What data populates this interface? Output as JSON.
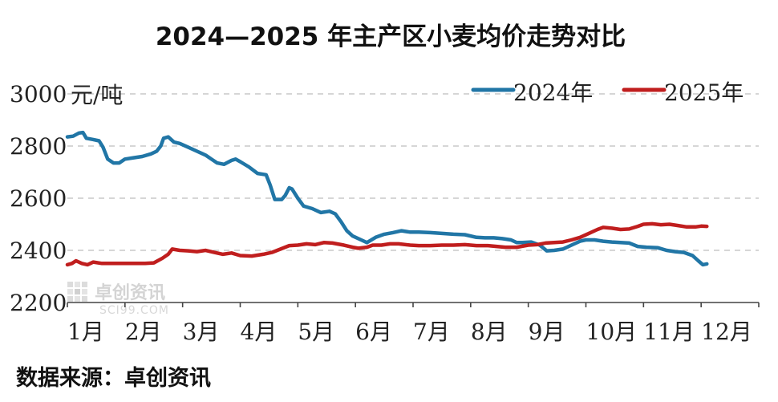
{
  "chart_data": {
    "type": "line",
    "title": "2024—2025 年主产区小麦均价走势对比",
    "ylabel_unit": "元/吨",
    "ylim": [
      2200,
      3000
    ],
    "yticks": [
      2200,
      2400,
      2600,
      2800,
      3000
    ],
    "categories": [
      "1月",
      "2月",
      "3月",
      "4月",
      "5月",
      "6月",
      "7月",
      "8月",
      "9月",
      "10月",
      "11月",
      "12月"
    ],
    "grid": true,
    "legend_position": "top-right",
    "series": [
      {
        "name": "2024年",
        "color": "#2176a6",
        "points": [
          [
            0.0,
            2835
          ],
          [
            0.1,
            2838
          ],
          [
            0.2,
            2850
          ],
          [
            0.27,
            2852
          ],
          [
            0.33,
            2830
          ],
          [
            0.45,
            2825
          ],
          [
            0.55,
            2820
          ],
          [
            0.62,
            2795
          ],
          [
            0.7,
            2750
          ],
          [
            0.8,
            2735
          ],
          [
            0.9,
            2735
          ],
          [
            1.0,
            2750
          ],
          [
            1.15,
            2755
          ],
          [
            1.3,
            2760
          ],
          [
            1.45,
            2770
          ],
          [
            1.55,
            2780
          ],
          [
            1.62,
            2800
          ],
          [
            1.67,
            2830
          ],
          [
            1.75,
            2835
          ],
          [
            1.85,
            2815
          ],
          [
            1.95,
            2810
          ],
          [
            2.1,
            2795
          ],
          [
            2.25,
            2780
          ],
          [
            2.4,
            2765
          ],
          [
            2.5,
            2750
          ],
          [
            2.6,
            2735
          ],
          [
            2.72,
            2730
          ],
          [
            2.85,
            2745
          ],
          [
            2.92,
            2750
          ],
          [
            3.0,
            2740
          ],
          [
            3.15,
            2720
          ],
          [
            3.3,
            2695
          ],
          [
            3.45,
            2690
          ],
          [
            3.52,
            2650
          ],
          [
            3.6,
            2595
          ],
          [
            3.72,
            2595
          ],
          [
            3.78,
            2610
          ],
          [
            3.85,
            2640
          ],
          [
            3.9,
            2635
          ],
          [
            4.0,
            2600
          ],
          [
            4.1,
            2570
          ],
          [
            4.25,
            2560
          ],
          [
            4.4,
            2545
          ],
          [
            4.55,
            2550
          ],
          [
            4.65,
            2540
          ],
          [
            4.75,
            2510
          ],
          [
            4.85,
            2475
          ],
          [
            4.95,
            2455
          ],
          [
            5.1,
            2440
          ],
          [
            5.2,
            2430
          ],
          [
            5.35,
            2450
          ],
          [
            5.5,
            2462
          ],
          [
            5.65,
            2468
          ],
          [
            5.8,
            2475
          ],
          [
            5.95,
            2470
          ],
          [
            6.1,
            2470
          ],
          [
            6.3,
            2468
          ],
          [
            6.5,
            2465
          ],
          [
            6.7,
            2462
          ],
          [
            6.9,
            2460
          ],
          [
            7.1,
            2450
          ],
          [
            7.25,
            2448
          ],
          [
            7.4,
            2448
          ],
          [
            7.55,
            2445
          ],
          [
            7.7,
            2440
          ],
          [
            7.8,
            2430
          ],
          [
            7.9,
            2430
          ],
          [
            8.05,
            2432
          ],
          [
            8.2,
            2420
          ],
          [
            8.32,
            2398
          ],
          [
            8.45,
            2400
          ],
          [
            8.6,
            2405
          ],
          [
            8.75,
            2420
          ],
          [
            8.9,
            2435
          ],
          [
            9.0,
            2440
          ],
          [
            9.15,
            2440
          ],
          [
            9.3,
            2435
          ],
          [
            9.45,
            2432
          ],
          [
            9.6,
            2430
          ],
          [
            9.75,
            2428
          ],
          [
            9.9,
            2415
          ],
          [
            10.05,
            2412
          ],
          [
            10.25,
            2410
          ],
          [
            10.4,
            2400
          ],
          [
            10.55,
            2395
          ],
          [
            10.7,
            2392
          ],
          [
            10.85,
            2380
          ],
          [
            10.95,
            2360
          ],
          [
            11.03,
            2345
          ],
          [
            11.1,
            2348
          ]
        ]
      },
      {
        "name": "2025年",
        "color": "#c01e1e",
        "points": [
          [
            0.0,
            2345
          ],
          [
            0.08,
            2350
          ],
          [
            0.15,
            2360
          ],
          [
            0.25,
            2350
          ],
          [
            0.35,
            2345
          ],
          [
            0.45,
            2355
          ],
          [
            0.6,
            2350
          ],
          [
            0.8,
            2350
          ],
          [
            1.0,
            2350
          ],
          [
            1.2,
            2350
          ],
          [
            1.35,
            2350
          ],
          [
            1.5,
            2352
          ],
          [
            1.65,
            2370
          ],
          [
            1.75,
            2385
          ],
          [
            1.82,
            2405
          ],
          [
            1.95,
            2400
          ],
          [
            2.1,
            2398
          ],
          [
            2.25,
            2395
          ],
          [
            2.4,
            2400
          ],
          [
            2.55,
            2392
          ],
          [
            2.7,
            2385
          ],
          [
            2.85,
            2390
          ],
          [
            3.0,
            2380
          ],
          [
            3.2,
            2378
          ],
          [
            3.4,
            2385
          ],
          [
            3.55,
            2392
          ],
          [
            3.7,
            2405
          ],
          [
            3.85,
            2418
          ],
          [
            4.0,
            2420
          ],
          [
            4.15,
            2425
          ],
          [
            4.3,
            2422
          ],
          [
            4.45,
            2430
          ],
          [
            4.6,
            2428
          ],
          [
            4.8,
            2420
          ],
          [
            4.95,
            2412
          ],
          [
            5.05,
            2408
          ],
          [
            5.2,
            2412
          ],
          [
            5.3,
            2420
          ],
          [
            5.45,
            2420
          ],
          [
            5.6,
            2425
          ],
          [
            5.75,
            2425
          ],
          [
            5.95,
            2420
          ],
          [
            6.1,
            2418
          ],
          [
            6.3,
            2418
          ],
          [
            6.5,
            2420
          ],
          [
            6.7,
            2420
          ],
          [
            6.9,
            2422
          ],
          [
            7.1,
            2418
          ],
          [
            7.3,
            2418
          ],
          [
            7.45,
            2415
          ],
          [
            7.6,
            2412
          ],
          [
            7.8,
            2412
          ],
          [
            8.0,
            2420
          ],
          [
            8.15,
            2422
          ],
          [
            8.3,
            2428
          ],
          [
            8.45,
            2430
          ],
          [
            8.6,
            2432
          ],
          [
            8.75,
            2440
          ],
          [
            8.9,
            2450
          ],
          [
            9.05,
            2465
          ],
          [
            9.2,
            2480
          ],
          [
            9.3,
            2488
          ],
          [
            9.45,
            2485
          ],
          [
            9.6,
            2480
          ],
          [
            9.75,
            2482
          ],
          [
            9.9,
            2492
          ],
          [
            10.0,
            2500
          ],
          [
            10.15,
            2502
          ],
          [
            10.3,
            2498
          ],
          [
            10.45,
            2500
          ],
          [
            10.6,
            2495
          ],
          [
            10.75,
            2490
          ],
          [
            10.9,
            2490
          ],
          [
            11.0,
            2493
          ],
          [
            11.1,
            2492
          ]
        ]
      }
    ]
  },
  "source_label": "数据来源：卓创资讯",
  "watermark": {
    "name": "卓创资讯",
    "site": "SCI99.COM"
  }
}
